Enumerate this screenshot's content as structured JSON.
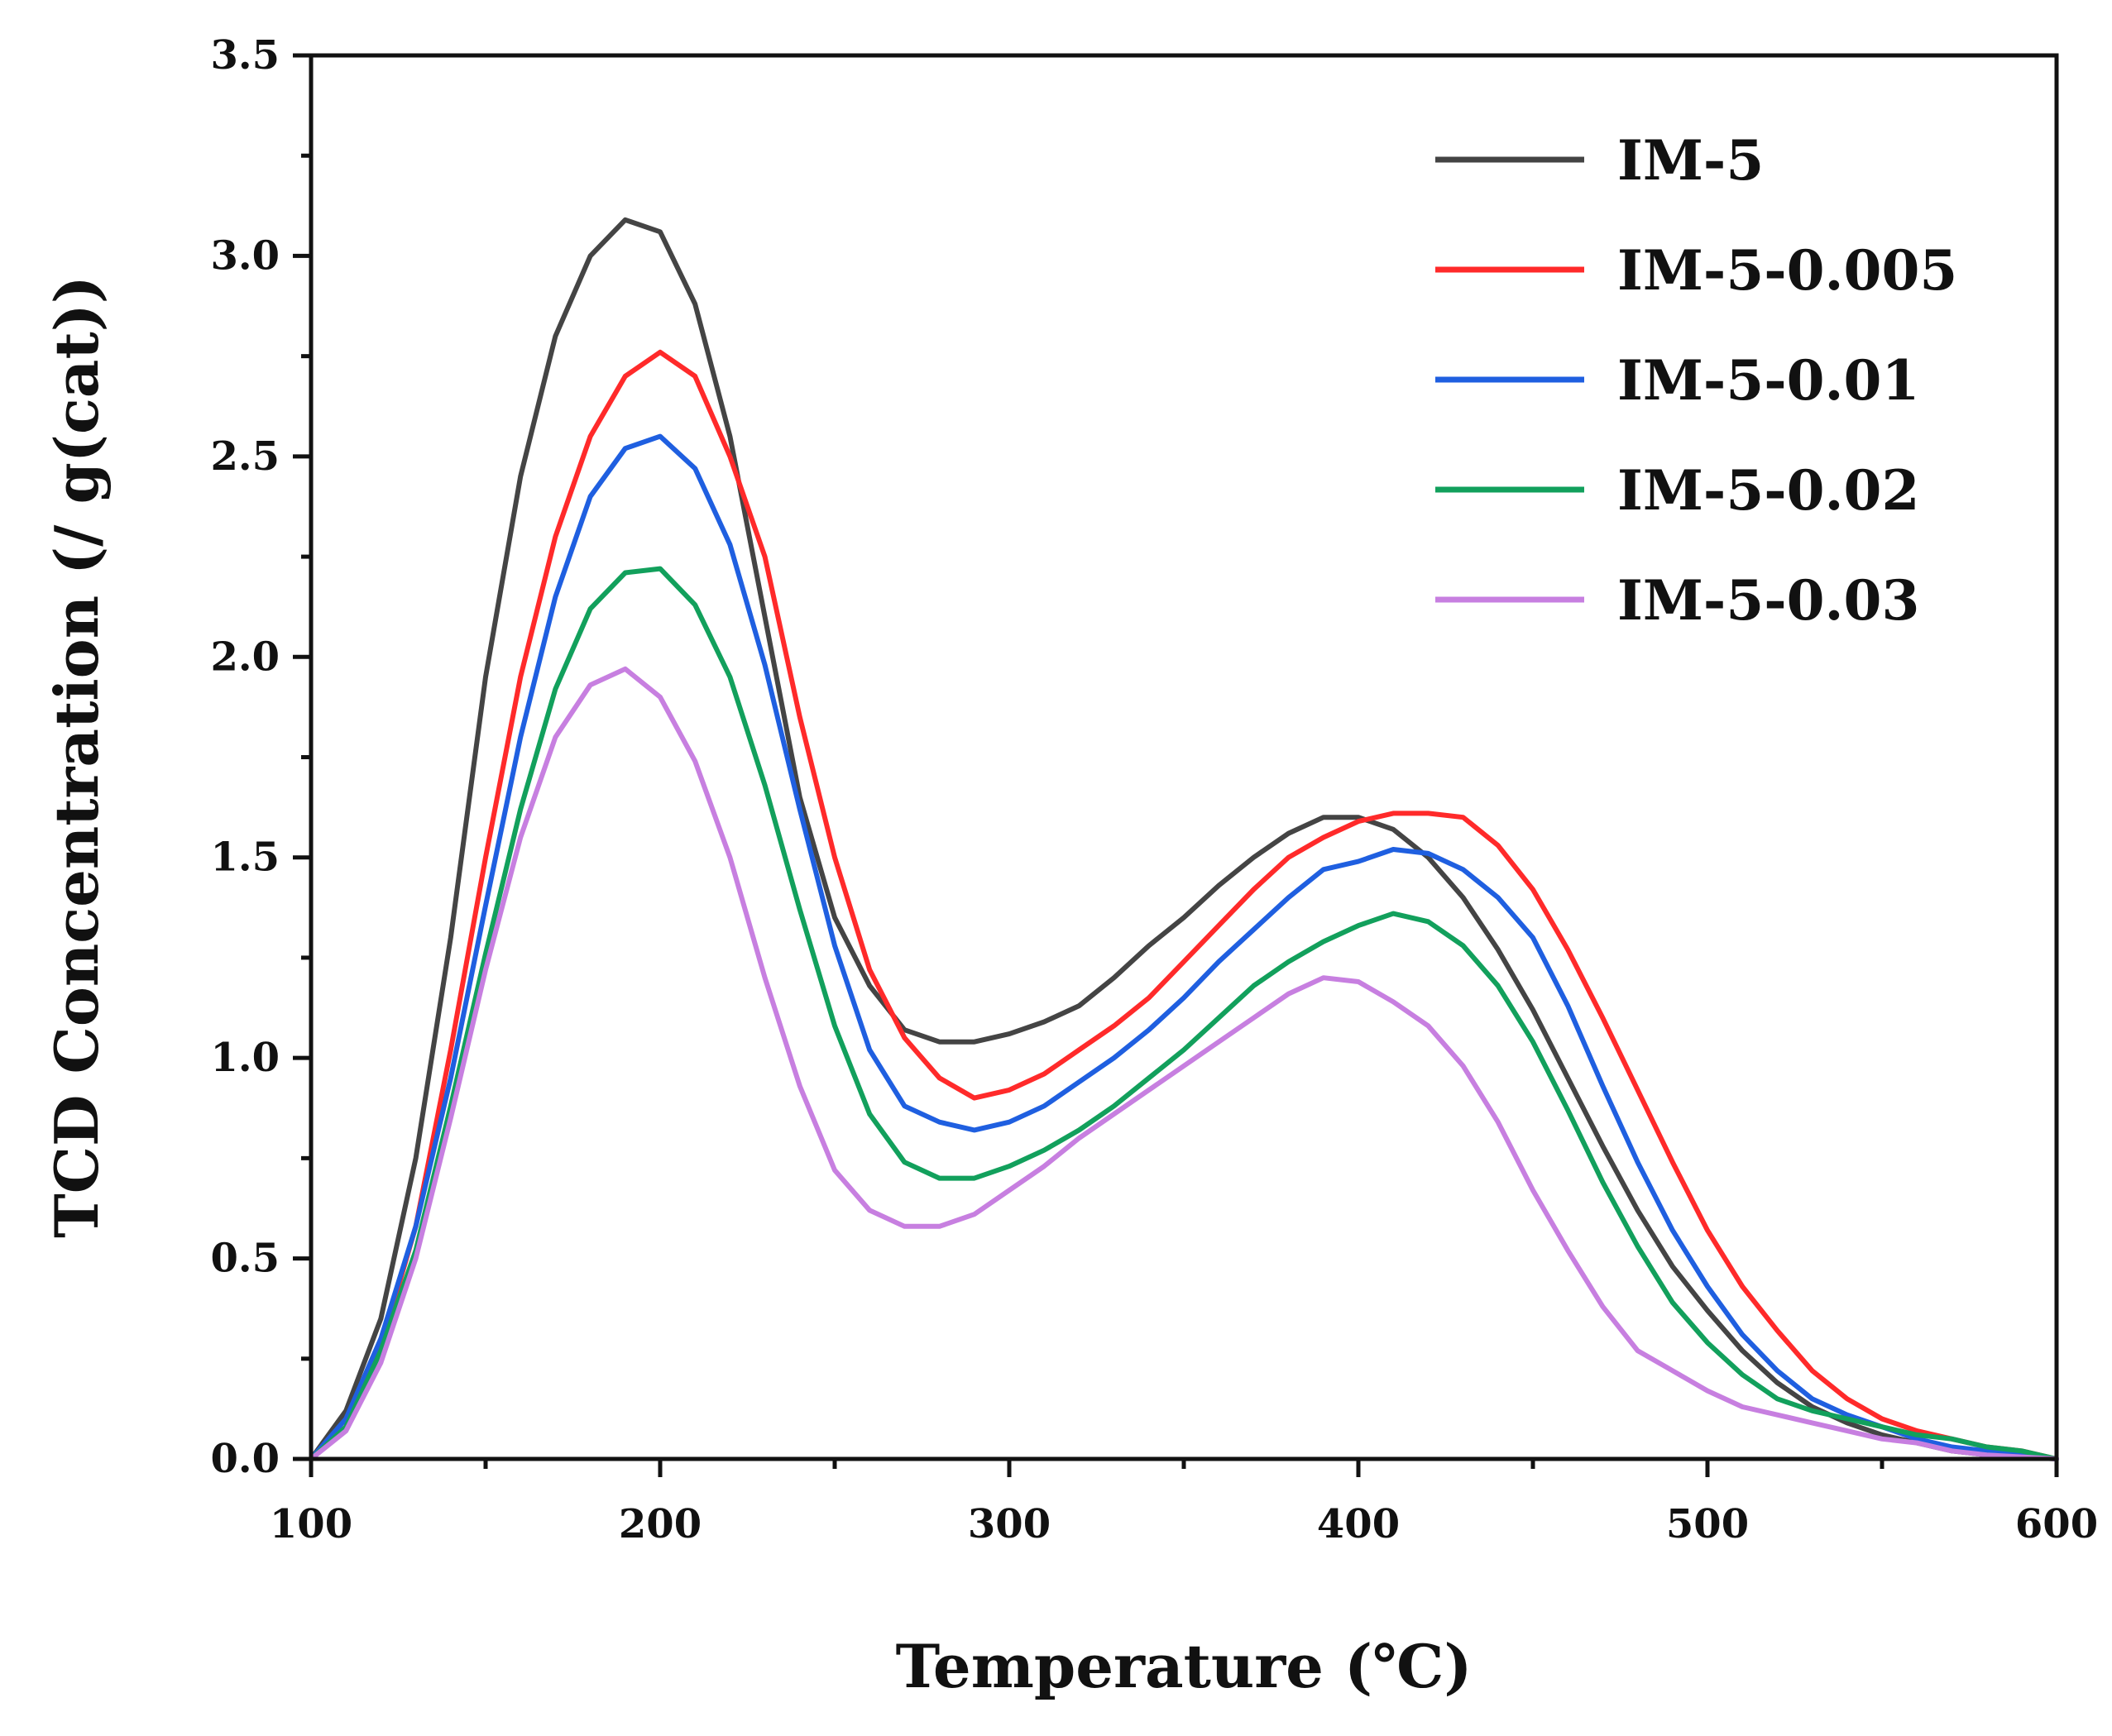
{
  "chart_data": {
    "type": "line",
    "title": "",
    "xlabel": "Temperature (℃)",
    "ylabel": "TCD Concentration (/ g(cat))",
    "xlim": [
      100,
      600
    ],
    "ylim": [
      0.0,
      3.5
    ],
    "xticks": [
      "100",
      "200",
      "300",
      "400",
      "500",
      "600"
    ],
    "yticks": [
      "0.0",
      "0.5",
      "1.0",
      "1.5",
      "2.0",
      "2.5",
      "3.0",
      "3.5"
    ],
    "grid": false,
    "legend_position": "top-right",
    "series": [
      {
        "name": "IM-5",
        "color": "#444444",
        "points": [
          [
            100,
            0.0
          ],
          [
            110,
            0.12
          ],
          [
            120,
            0.35
          ],
          [
            130,
            0.75
          ],
          [
            140,
            1.3
          ],
          [
            150,
            1.95
          ],
          [
            160,
            2.45
          ],
          [
            170,
            2.8
          ],
          [
            180,
            3.0
          ],
          [
            190,
            3.09
          ],
          [
            200,
            3.06
          ],
          [
            210,
            2.88
          ],
          [
            220,
            2.55
          ],
          [
            230,
            2.1
          ],
          [
            240,
            1.65
          ],
          [
            250,
            1.35
          ],
          [
            260,
            1.18
          ],
          [
            270,
            1.07
          ],
          [
            280,
            1.04
          ],
          [
            290,
            1.04
          ],
          [
            300,
            1.06
          ],
          [
            310,
            1.09
          ],
          [
            320,
            1.13
          ],
          [
            330,
            1.2
          ],
          [
            340,
            1.28
          ],
          [
            350,
            1.35
          ],
          [
            360,
            1.43
          ],
          [
            370,
            1.5
          ],
          [
            380,
            1.56
          ],
          [
            390,
            1.6
          ],
          [
            400,
            1.6
          ],
          [
            410,
            1.57
          ],
          [
            420,
            1.5
          ],
          [
            430,
            1.4
          ],
          [
            440,
            1.27
          ],
          [
            450,
            1.12
          ],
          [
            460,
            0.95
          ],
          [
            470,
            0.78
          ],
          [
            480,
            0.62
          ],
          [
            490,
            0.48
          ],
          [
            500,
            0.37
          ],
          [
            510,
            0.27
          ],
          [
            520,
            0.19
          ],
          [
            530,
            0.13
          ],
          [
            540,
            0.09
          ],
          [
            550,
            0.06
          ],
          [
            560,
            0.04
          ],
          [
            570,
            0.02
          ],
          [
            580,
            0.01
          ],
          [
            590,
            0.005
          ],
          [
            600,
            0.0
          ]
        ]
      },
      {
        "name": "IM-5-0.005",
        "color": "#ff2a2a",
        "points": [
          [
            100,
            0.0
          ],
          [
            110,
            0.08
          ],
          [
            120,
            0.28
          ],
          [
            130,
            0.58
          ],
          [
            140,
            1.02
          ],
          [
            150,
            1.5
          ],
          [
            160,
            1.95
          ],
          [
            170,
            2.3
          ],
          [
            180,
            2.55
          ],
          [
            190,
            2.7
          ],
          [
            200,
            2.76
          ],
          [
            210,
            2.7
          ],
          [
            220,
            2.5
          ],
          [
            230,
            2.25
          ],
          [
            240,
            1.85
          ],
          [
            250,
            1.5
          ],
          [
            260,
            1.22
          ],
          [
            270,
            1.05
          ],
          [
            280,
            0.95
          ],
          [
            290,
            0.9
          ],
          [
            300,
            0.92
          ],
          [
            310,
            0.96
          ],
          [
            320,
            1.02
          ],
          [
            330,
            1.08
          ],
          [
            340,
            1.15
          ],
          [
            350,
            1.24
          ],
          [
            360,
            1.33
          ],
          [
            370,
            1.42
          ],
          [
            380,
            1.5
          ],
          [
            390,
            1.55
          ],
          [
            400,
            1.59
          ],
          [
            410,
            1.61
          ],
          [
            420,
            1.61
          ],
          [
            430,
            1.6
          ],
          [
            440,
            1.53
          ],
          [
            450,
            1.42
          ],
          [
            460,
            1.27
          ],
          [
            470,
            1.1
          ],
          [
            480,
            0.92
          ],
          [
            490,
            0.74
          ],
          [
            500,
            0.57
          ],
          [
            510,
            0.43
          ],
          [
            520,
            0.32
          ],
          [
            530,
            0.22
          ],
          [
            540,
            0.15
          ],
          [
            550,
            0.1
          ],
          [
            560,
            0.07
          ],
          [
            570,
            0.05
          ],
          [
            580,
            0.03
          ],
          [
            590,
            0.02
          ],
          [
            600,
            0.0
          ]
        ]
      },
      {
        "name": "IM-5-0.01",
        "color": "#1f5fe0",
        "points": [
          [
            100,
            0.0
          ],
          [
            110,
            0.1
          ],
          [
            120,
            0.3
          ],
          [
            130,
            0.58
          ],
          [
            140,
            0.95
          ],
          [
            150,
            1.38
          ],
          [
            160,
            1.8
          ],
          [
            170,
            2.15
          ],
          [
            180,
            2.4
          ],
          [
            190,
            2.52
          ],
          [
            200,
            2.55
          ],
          [
            210,
            2.47
          ],
          [
            220,
            2.28
          ],
          [
            230,
            1.98
          ],
          [
            240,
            1.62
          ],
          [
            250,
            1.28
          ],
          [
            260,
            1.02
          ],
          [
            270,
            0.88
          ],
          [
            280,
            0.84
          ],
          [
            290,
            0.82
          ],
          [
            300,
            0.84
          ],
          [
            310,
            0.88
          ],
          [
            320,
            0.94
          ],
          [
            330,
            1.0
          ],
          [
            340,
            1.07
          ],
          [
            350,
            1.15
          ],
          [
            360,
            1.24
          ],
          [
            370,
            1.32
          ],
          [
            380,
            1.4
          ],
          [
            390,
            1.47
          ],
          [
            400,
            1.49
          ],
          [
            410,
            1.52
          ],
          [
            420,
            1.51
          ],
          [
            430,
            1.47
          ],
          [
            440,
            1.4
          ],
          [
            450,
            1.3
          ],
          [
            460,
            1.13
          ],
          [
            470,
            0.93
          ],
          [
            480,
            0.74
          ],
          [
            490,
            0.57
          ],
          [
            500,
            0.43
          ],
          [
            510,
            0.31
          ],
          [
            520,
            0.22
          ],
          [
            530,
            0.15
          ],
          [
            540,
            0.11
          ],
          [
            550,
            0.08
          ],
          [
            560,
            0.05
          ],
          [
            570,
            0.03
          ],
          [
            580,
            0.02
          ],
          [
            590,
            0.01
          ],
          [
            600,
            0.0
          ]
        ]
      },
      {
        "name": "IM-5-0.02",
        "color": "#12a05c",
        "points": [
          [
            100,
            0.0
          ],
          [
            110,
            0.08
          ],
          [
            120,
            0.27
          ],
          [
            130,
            0.52
          ],
          [
            140,
            0.88
          ],
          [
            150,
            1.26
          ],
          [
            160,
            1.62
          ],
          [
            170,
            1.92
          ],
          [
            180,
            2.12
          ],
          [
            190,
            2.21
          ],
          [
            200,
            2.22
          ],
          [
            210,
            2.13
          ],
          [
            220,
            1.95
          ],
          [
            230,
            1.68
          ],
          [
            240,
            1.37
          ],
          [
            250,
            1.08
          ],
          [
            260,
            0.86
          ],
          [
            270,
            0.74
          ],
          [
            280,
            0.7
          ],
          [
            290,
            0.7
          ],
          [
            300,
            0.73
          ],
          [
            310,
            0.77
          ],
          [
            320,
            0.82
          ],
          [
            330,
            0.88
          ],
          [
            340,
            0.95
          ],
          [
            350,
            1.02
          ],
          [
            360,
            1.1
          ],
          [
            370,
            1.18
          ],
          [
            380,
            1.24
          ],
          [
            390,
            1.29
          ],
          [
            400,
            1.33
          ],
          [
            410,
            1.36
          ],
          [
            420,
            1.34
          ],
          [
            430,
            1.28
          ],
          [
            440,
            1.18
          ],
          [
            450,
            1.04
          ],
          [
            460,
            0.87
          ],
          [
            470,
            0.69
          ],
          [
            480,
            0.53
          ],
          [
            490,
            0.39
          ],
          [
            500,
            0.29
          ],
          [
            510,
            0.21
          ],
          [
            520,
            0.15
          ],
          [
            530,
            0.12
          ],
          [
            540,
            0.1
          ],
          [
            550,
            0.08
          ],
          [
            560,
            0.06
          ],
          [
            570,
            0.05
          ],
          [
            580,
            0.03
          ],
          [
            590,
            0.02
          ],
          [
            600,
            0.0
          ]
        ]
      },
      {
        "name": "IM-5-0.03",
        "color": "#c77fe0",
        "points": [
          [
            100,
            0.0
          ],
          [
            110,
            0.07
          ],
          [
            120,
            0.24
          ],
          [
            130,
            0.5
          ],
          [
            140,
            0.85
          ],
          [
            150,
            1.22
          ],
          [
            160,
            1.55
          ],
          [
            170,
            1.8
          ],
          [
            180,
            1.93
          ],
          [
            190,
            1.97
          ],
          [
            200,
            1.9
          ],
          [
            210,
            1.74
          ],
          [
            220,
            1.5
          ],
          [
            230,
            1.2
          ],
          [
            240,
            0.93
          ],
          [
            250,
            0.72
          ],
          [
            260,
            0.62
          ],
          [
            270,
            0.58
          ],
          [
            280,
            0.58
          ],
          [
            290,
            0.61
          ],
          [
            300,
            0.67
          ],
          [
            310,
            0.73
          ],
          [
            320,
            0.8
          ],
          [
            330,
            0.86
          ],
          [
            340,
            0.92
          ],
          [
            350,
            0.98
          ],
          [
            360,
            1.04
          ],
          [
            370,
            1.1
          ],
          [
            380,
            1.16
          ],
          [
            390,
            1.2
          ],
          [
            400,
            1.19
          ],
          [
            410,
            1.14
          ],
          [
            420,
            1.08
          ],
          [
            430,
            0.98
          ],
          [
            440,
            0.84
          ],
          [
            450,
            0.67
          ],
          [
            460,
            0.52
          ],
          [
            470,
            0.38
          ],
          [
            480,
            0.27
          ],
          [
            490,
            0.22
          ],
          [
            500,
            0.17
          ],
          [
            510,
            0.13
          ],
          [
            520,
            0.11
          ],
          [
            530,
            0.09
          ],
          [
            540,
            0.07
          ],
          [
            550,
            0.05
          ],
          [
            560,
            0.04
          ],
          [
            570,
            0.02
          ],
          [
            580,
            0.01
          ],
          [
            590,
            0.005
          ],
          [
            600,
            0.0
          ]
        ]
      }
    ]
  }
}
